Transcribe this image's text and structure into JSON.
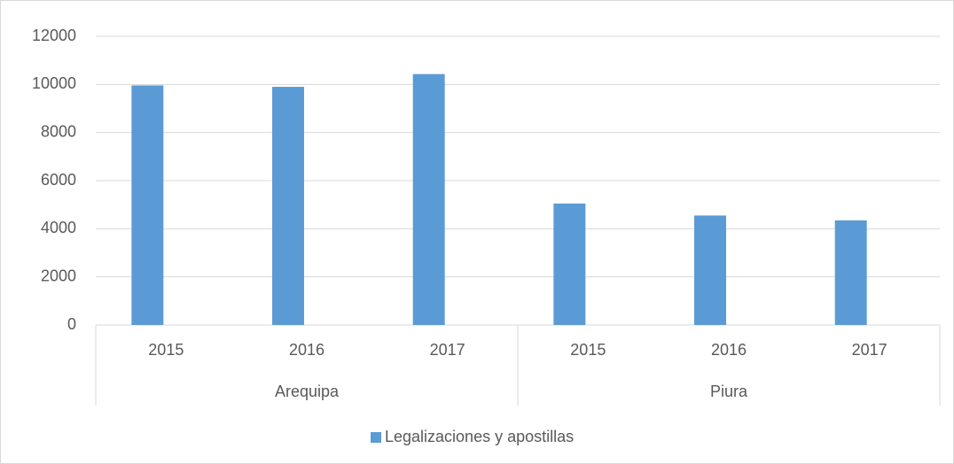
{
  "chart_data": {
    "type": "bar",
    "groups": [
      {
        "label": "Arequipa",
        "categories": [
          "2015",
          "2016",
          "2017"
        ]
      },
      {
        "label": "Piura",
        "categories": [
          "2015",
          "2016",
          "2017"
        ]
      }
    ],
    "series": [
      {
        "name": "Legalizaciones y apostillas",
        "color": "#5b9bd5",
        "values": [
          9960,
          9900,
          10430,
          5050,
          4550,
          4350
        ]
      }
    ],
    "ylim": [
      0,
      12000
    ],
    "yticks": [
      0,
      2000,
      4000,
      6000,
      8000,
      10000,
      12000
    ],
    "grid": true,
    "legend": "bottom"
  }
}
